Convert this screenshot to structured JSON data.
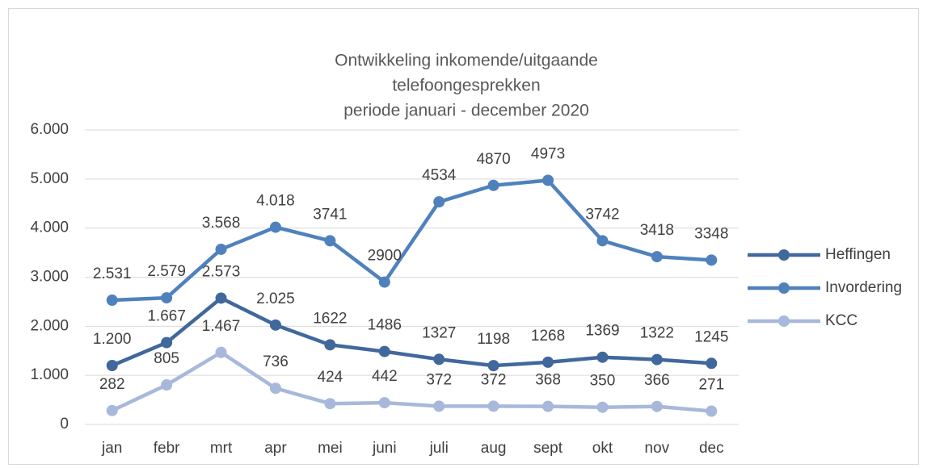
{
  "chart_data": {
    "type": "line",
    "title": [
      "Ontwikkeling inkomende/uitgaande",
      "telefoongesprekken",
      "periode januari - december 2020"
    ],
    "categories": [
      "jan",
      "febr",
      "mrt",
      "apr",
      "mei",
      "juni",
      "juli",
      "aug",
      "sept",
      "okt",
      "nov",
      "dec"
    ],
    "series": [
      {
        "name": "Heffingen",
        "color": "#40689c",
        "values": [
          1200,
          1667,
          2573,
          2025,
          1622,
          1486,
          1327,
          1198,
          1268,
          1369,
          1322,
          1245
        ],
        "value_labels": [
          "1.200",
          "1.667",
          "2.573",
          "2.025",
          "1622",
          "1486",
          "1327",
          "1198",
          "1268",
          "1369",
          "1322",
          "1245"
        ]
      },
      {
        "name": "Invordering",
        "color": "#4f81bd",
        "values": [
          2531,
          2579,
          3568,
          4018,
          3741,
          2900,
          4534,
          4870,
          4973,
          3742,
          3418,
          3348
        ],
        "value_labels": [
          "2.531",
          "2.579",
          "3.568",
          "4.018",
          "3741",
          "2900",
          "4534",
          "4870",
          "4973",
          "3742",
          "3418",
          "3348"
        ]
      },
      {
        "name": "KCC",
        "color": "#a7b8da",
        "values": [
          282,
          805,
          1467,
          736,
          424,
          442,
          372,
          372,
          368,
          350,
          366,
          271
        ],
        "value_labels": [
          "282",
          "805",
          "1.467",
          "736",
          "424",
          "442",
          "372",
          "372",
          "368",
          "350",
          "366",
          "271"
        ]
      }
    ],
    "ylim": [
      0,
      6000
    ],
    "yticks": [
      0,
      {
        "value": 1000,
        "label": "1.000"
      },
      {
        "value": 2000,
        "label": "2.000"
      },
      {
        "value": 3000,
        "label": "3.000"
      },
      {
        "value": 4000,
        "label": "4.000"
      },
      {
        "value": 5000,
        "label": "5.000"
      },
      {
        "value": 6000,
        "label": "6.000"
      }
    ],
    "grid": true,
    "legend": "right"
  }
}
